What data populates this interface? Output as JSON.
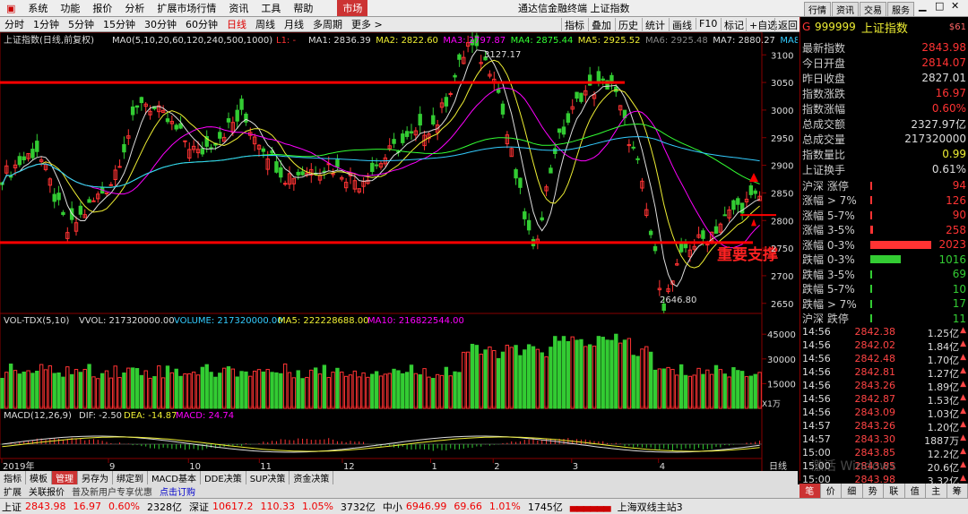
{
  "menu": {
    "items": [
      "系统",
      "功能",
      "报价",
      "分析",
      "扩展市场行情",
      "资讯",
      "工具",
      "帮助"
    ],
    "market_tab": "市场",
    "app_title": "通达信金融终端  上证指数",
    "right_buttons": [
      "行情",
      "资讯",
      "交易",
      "服务"
    ]
  },
  "periods": [
    "分时",
    "1分钟",
    "5分钟",
    "15分钟",
    "30分钟",
    "60分钟",
    "日线",
    "周线",
    "月线",
    "多周期",
    "更多 >"
  ],
  "active_period": "日线",
  "toolbar": [
    "指标",
    "叠加",
    "历史",
    "统计",
    "画线",
    "F10",
    "标记",
    "+自选",
    "返回"
  ],
  "main_header": {
    "name": "上证指数(日线,前复权)",
    "ma0": "MA0(5,10,20,60,120,240,500,1000)",
    "items": [
      {
        "text": "L1: -",
        "color": "#f33"
      },
      {
        "text": "MA1: 2836.39",
        "color": "#ddd"
      },
      {
        "text": "MA2: 2822.60",
        "color": "#ee3"
      },
      {
        "text": "MA3: 2797.87",
        "color": "#f0f"
      },
      {
        "text": "MA4: 2875.44",
        "color": "#3f3"
      },
      {
        "text": "MA5: 2925.52",
        "color": "#ee3"
      },
      {
        "text": "MA6: 2925.48",
        "color": "#888"
      },
      {
        "text": "MA7: 2880.27",
        "color": "#ddd"
      },
      {
        "text": "MA8 ◆",
        "color": "#3cf"
      }
    ]
  },
  "price_axis": [
    "3100",
    "3050",
    "3000",
    "2950",
    "2900",
    "2850",
    "2800",
    "2750",
    "2700",
    "2650"
  ],
  "annotations": {
    "high": "3127.17",
    "low": "2646.80",
    "support": "重要支撑"
  },
  "vol_header": {
    "name": "VOL-TDX(5,10)",
    "vvol": "VVOL: 217320000.00",
    "volume": "VOLUME: 217320000.00",
    "ma5": "MA5: 222228688.00",
    "ma10": "MA10: 216822544.00"
  },
  "vol_axis": [
    "45000",
    "30000",
    "15000"
  ],
  "vol_unit": "X1万",
  "macd_header": {
    "name": "MACD(12,26,9)",
    "dif": "DIF: -2.50",
    "dea": "DEA: -14.87",
    "macd": "MACD: 24.74"
  },
  "time_axis": [
    {
      "label": "2019年",
      "pos": 0.0
    },
    {
      "label": "9",
      "pos": 0.14
    },
    {
      "label": "10",
      "pos": 0.245
    },
    {
      "label": "11",
      "pos": 0.338
    },
    {
      "label": "12",
      "pos": 0.447
    },
    {
      "label": "1",
      "pos": 0.563
    },
    {
      "label": "2",
      "pos": 0.645
    },
    {
      "label": "3",
      "pos": 0.748
    },
    {
      "label": "4",
      "pos": 0.862
    }
  ],
  "period_label": "日线",
  "side": {
    "code": "999999",
    "name": "上证指数",
    "tag": "$61",
    "stats": [
      {
        "k": "最新指数",
        "v": "2843.98",
        "c": "#f33"
      },
      {
        "k": "今日开盘",
        "v": "2814.07",
        "c": "#f33"
      },
      {
        "k": "昨日收盘",
        "v": "2827.01",
        "c": "#ddd"
      },
      {
        "k": "指数涨跌",
        "v": "16.97",
        "c": "#f33"
      },
      {
        "k": "指数涨幅",
        "v": "0.60%",
        "c": "#f33"
      },
      {
        "k": "总成交额",
        "v": "2327.97亿",
        "c": "#ddd"
      },
      {
        "k": "总成交量",
        "v": "217320000",
        "c": "#ddd"
      },
      {
        "k": "指数量比",
        "v": "0.99",
        "c": "#ee3"
      },
      {
        "k": "上证换手",
        "v": "0.61%",
        "c": "#ddd"
      }
    ],
    "breadth": [
      {
        "k": "沪深 涨停",
        "v": "94",
        "c": "#f33",
        "w": 0
      },
      {
        "k": "涨幅 > 7%",
        "v": "126",
        "c": "#f33",
        "w": 0.02
      },
      {
        "k": "涨幅 5-7%",
        "v": "90",
        "c": "#f33",
        "w": 0.015
      },
      {
        "k": "涨幅 3-5%",
        "v": "258",
        "c": "#f33",
        "w": 0.04
      },
      {
        "k": "涨幅 0-3%",
        "v": "2023",
        "c": "#f33",
        "w": 1.0
      },
      {
        "k": "跌幅 0-3%",
        "v": "1016",
        "c": "#3c3",
        "w": 0.5
      },
      {
        "k": "跌幅 3-5%",
        "v": "69",
        "c": "#3c3",
        "w": 0.012
      },
      {
        "k": "跌幅 5-7%",
        "v": "10",
        "c": "#3c3",
        "w": 0.005
      },
      {
        "k": "跌幅 > 7%",
        "v": "17",
        "c": "#3c3",
        "w": 0.006
      },
      {
        "k": "沪深 跌停",
        "v": "11",
        "c": "#3c3",
        "w": 0
      }
    ],
    "ticks": [
      {
        "t": "14:56",
        "p": "2842.38",
        "v": "1.25亿"
      },
      {
        "t": "14:56",
        "p": "2842.02",
        "v": "1.84亿"
      },
      {
        "t": "14:56",
        "p": "2842.48",
        "v": "1.70亿"
      },
      {
        "t": "14:56",
        "p": "2842.81",
        "v": "1.27亿"
      },
      {
        "t": "14:56",
        "p": "2843.26",
        "v": "1.89亿"
      },
      {
        "t": "14:56",
        "p": "2842.87",
        "v": "1.53亿"
      },
      {
        "t": "14:56",
        "p": "2843.09",
        "v": "1.03亿"
      },
      {
        "t": "14:57",
        "p": "2843.26",
        "v": "1.20亿"
      },
      {
        "t": "14:57",
        "p": "2843.30",
        "v": "1887万"
      },
      {
        "t": "15:00",
        "p": "2843.85",
        "v": "12.2亿"
      },
      {
        "t": "15:00",
        "p": "2843.85",
        "v": "20.6亿"
      },
      {
        "t": "15:00",
        "p": "2843.98",
        "v": "3.32亿"
      }
    ],
    "buttons": [
      "笔",
      "价",
      "细",
      "势",
      "联",
      "值",
      "主",
      "筹"
    ]
  },
  "bottom_tabs": [
    "指标",
    "模板",
    "管理",
    "另存为",
    "绑定到",
    "MACD基本",
    "DDE决策",
    "SUP决策",
    "资金决策"
  ],
  "active_tab": "管理",
  "ext_bar": [
    "扩展",
    "关联报价",
    "普及新用户专享优惠",
    "点击订购"
  ],
  "status": [
    {
      "label": "上证",
      "vals": [
        "2843.98",
        "16.97",
        "0.60%"
      ],
      "amt": "2328亿"
    },
    {
      "label": "深证",
      "vals": [
        "10617.2",
        "110.33",
        "1.05%"
      ],
      "amt": "3732亿"
    },
    {
      "label": "中小",
      "vals": [
        "6946.99",
        "69.66",
        "1.01%"
      ],
      "amt": "1745亿"
    }
  ],
  "station": "上海双线主站3",
  "watermark": "激活 Windows"
}
